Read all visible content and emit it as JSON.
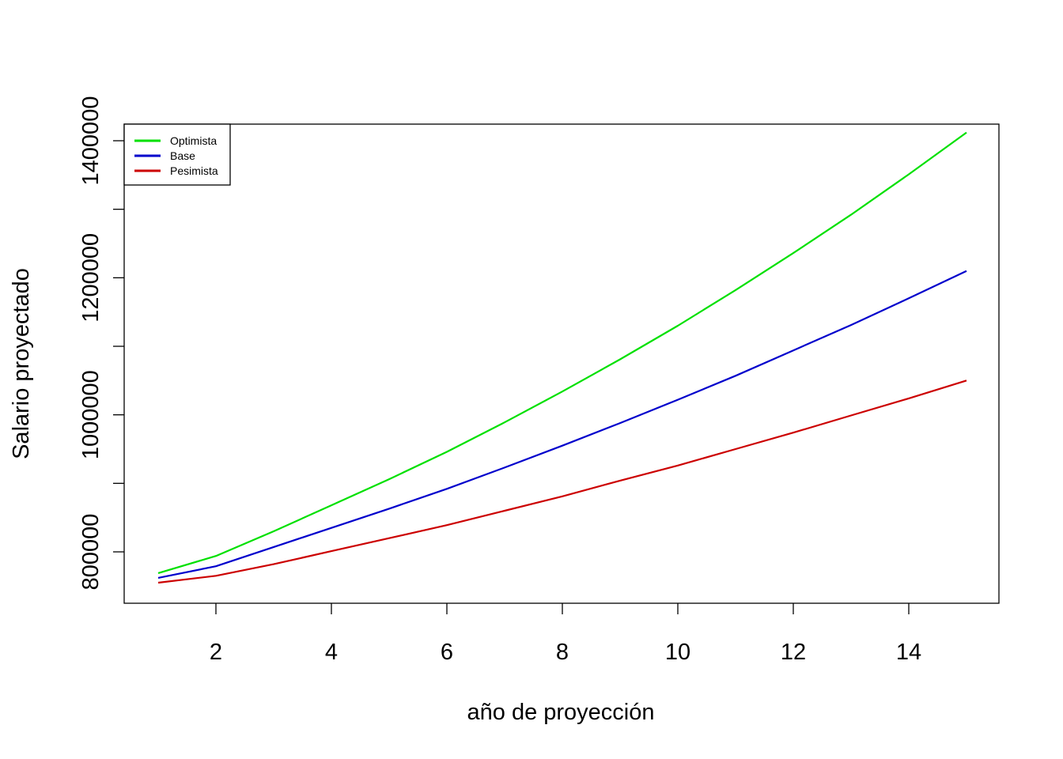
{
  "chart_data": {
    "type": "line",
    "title": "",
    "xlabel": "año de proyección",
    "ylabel": "Salario proyectado",
    "xlim": [
      1,
      15
    ],
    "ylim": [
      750000,
      1410000
    ],
    "x_ticks": [
      2,
      4,
      6,
      8,
      10,
      12,
      14
    ],
    "y_ticks": [
      800000,
      900000,
      1000000,
      1100000,
      1200000,
      1300000,
      1400000
    ],
    "y_tick_labels": [
      {
        "value": 800000,
        "label": "800000"
      },
      {
        "value": 1000000,
        "label": "1000000"
      },
      {
        "value": 1200000,
        "label": "1200000"
      },
      {
        "value": 1400000,
        "label": "1400000"
      }
    ],
    "x": [
      1,
      2,
      3,
      4,
      5,
      6,
      7,
      8,
      9,
      10,
      11,
      12,
      13,
      14,
      15
    ],
    "series": [
      {
        "name": "Optimista",
        "color": "#00e000",
        "values": [
          769000,
          794000,
          830000,
          868000,
          906000,
          946000,
          989000,
          1034000,
          1081000,
          1130000,
          1182000,
          1236000,
          1292000,
          1351000,
          1412000
        ]
      },
      {
        "name": "Base",
        "color": "#0000cc",
        "values": [
          762000,
          779000,
          807000,
          835000,
          863000,
          892000,
          923000,
          955000,
          988000,
          1022000,
          1057000,
          1094000,
          1131000,
          1170000,
          1210000
        ]
      },
      {
        "name": "Pesimista",
        "color": "#cc0000",
        "values": [
          755000,
          765000,
          782000,
          801000,
          820000,
          839000,
          860000,
          881000,
          904000,
          926000,
          950000,
          974000,
          999000,
          1024000,
          1050000
        ]
      }
    ],
    "legend": {
      "position": "top-left"
    },
    "grid": false
  }
}
